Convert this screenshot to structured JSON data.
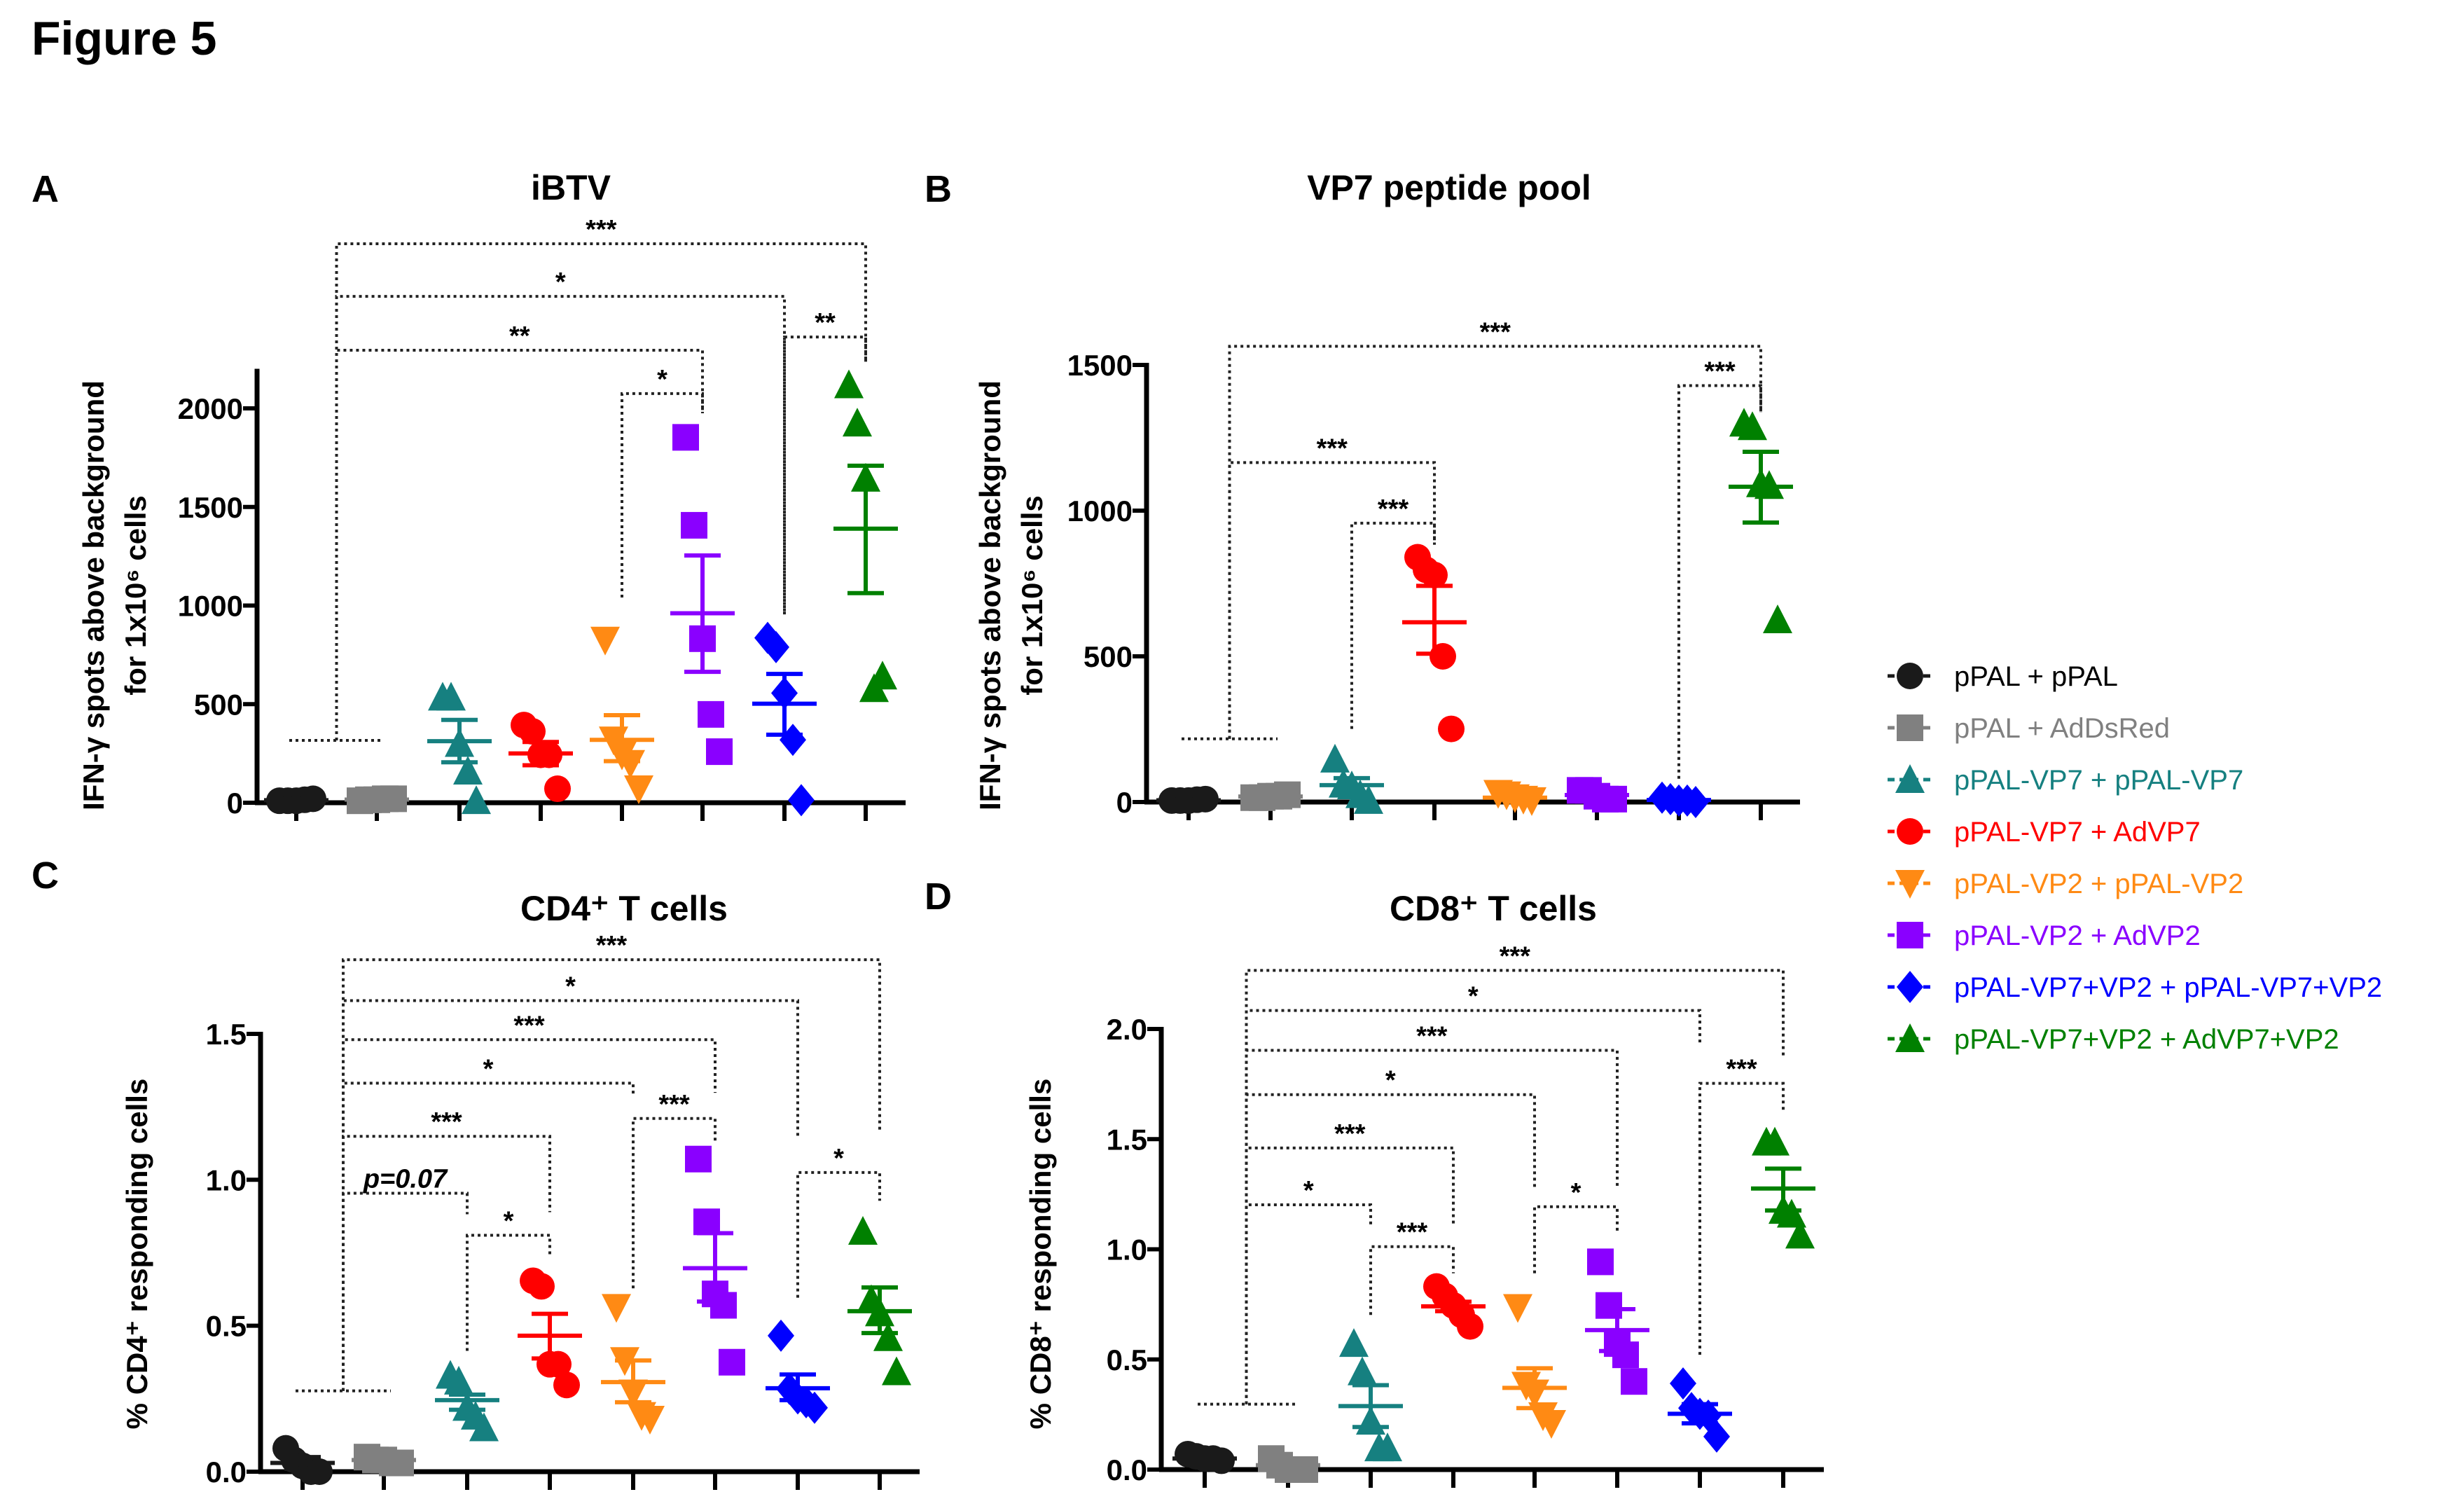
{
  "figure_title": "Figure 5",
  "legend": [
    {
      "label": "pPAL + pPAL",
      "color": "#1a1a1a",
      "marker": "circle"
    },
    {
      "label": "pPAL + AdDsRed",
      "color": "#808080",
      "marker": "square"
    },
    {
      "label": "pPAL-VP7 + pPAL-VP7",
      "color": "#168080",
      "marker": "triangle-up"
    },
    {
      "label": "pPAL-VP7 + AdVP7",
      "color": "#ff0000",
      "marker": "circle"
    },
    {
      "label": "pPAL-VP2 + pPAL-VP2",
      "color": "#ff8a14",
      "marker": "triangle-down"
    },
    {
      "label": "pPAL-VP2 + AdVP2",
      "color": "#8a00ff",
      "marker": "square"
    },
    {
      "label": "pPAL-VP7+VP2 + pPAL-VP7+VP2",
      "color": "#0000ff",
      "marker": "diamond"
    },
    {
      "label": "pPAL-VP7+VP2 + AdVP7+VP2",
      "color": "#008000",
      "marker": "triangle-up"
    }
  ],
  "chart_data": [
    {
      "panel": "A",
      "title": "iBTV",
      "type": "scatter",
      "ylabel": [
        "IFN-γ spots above background",
        "for 1x10⁶ cells"
      ],
      "ylim": [
        0,
        2190
      ],
      "yticks": [
        "0",
        "500",
        "1000",
        "1500",
        "2000"
      ],
      "ytick_values": [
        0,
        500,
        1000,
        1500,
        2000
      ],
      "groups": [
        {
          "points": [
            10,
            10,
            10,
            15,
            20
          ],
          "mean": 13,
          "sem": [
            8,
            18
          ]
        },
        {
          "points": [
            10,
            15,
            15,
            20,
            20
          ],
          "mean": 16,
          "sem": [
            12,
            20
          ]
        },
        {
          "points": [
            535,
            535,
            300,
            160,
            10
          ],
          "mean": 312,
          "sem": [
            205,
            420
          ]
        },
        {
          "points": [
            394,
            362,
            243,
            243,
            71
          ],
          "mean": 250,
          "sem": [
            190,
            308
          ]
        },
        {
          "points": [
            825,
            319,
            243,
            200,
            71
          ],
          "mean": 319,
          "sem": [
            211,
            444
          ]
        },
        {
          "points": [
            1853,
            1407,
            832,
            448,
            259
          ],
          "mean": 961,
          "sem": [
            664,
            1254
          ]
        },
        {
          "points": [
            836,
            789,
            556,
            319,
            13
          ],
          "mean": 502,
          "sem": [
            345,
            653
          ]
        },
        {
          "points": [
            2119,
            1925,
            1645,
            578,
            642
          ],
          "mean": 1390,
          "sem": [
            1063,
            1709
          ]
        }
      ],
      "control_line": {
        "from": 0,
        "to": 1,
        "y": 316
      },
      "brackets": [
        {
          "from": 0.5,
          "to": 7,
          "y": 2835,
          "y1": 316,
          "y2": 2234,
          "label": "***"
        },
        {
          "from": 0.5,
          "to": 6,
          "y": 2568,
          "y1": 316,
          "y2": 955,
          "label": "*"
        },
        {
          "from": 0.5,
          "to": 5,
          "y": 2295,
          "y1": 316,
          "y2": 1975,
          "label": "**"
        },
        {
          "from": 4,
          "to": 5,
          "y": 2075,
          "y1": 1041,
          "y2": 1975,
          "label": "*"
        },
        {
          "from": 6,
          "to": 7,
          "y": 2362,
          "y1": 955,
          "y2": 2234,
          "label": "**"
        }
      ]
    },
    {
      "panel": "B",
      "title": "VP7 peptide pool",
      "type": "scatter",
      "ylabel": [
        "IFN-γ spots above background",
        "for 1x10⁶ cells"
      ],
      "ylim": [
        0,
        1500
      ],
      "yticks": [
        "0",
        "500",
        "1000",
        "1500"
      ],
      "ytick_values": [
        0,
        500,
        1000,
        1500
      ],
      "groups": [
        {
          "points": [
            5,
            5,
            5,
            8,
            10
          ],
          "mean": 6,
          "sem": [
            4,
            8
          ]
        },
        {
          "points": [
            15,
            15,
            20,
            20,
            25
          ],
          "mean": 19,
          "sem": [
            16,
            22
          ]
        },
        {
          "points": [
            147,
            61,
            55,
            25,
            5
          ],
          "mean": 58,
          "sem": [
            30,
            82
          ]
        },
        {
          "points": [
            840,
            797,
            779,
            500,
            251
          ],
          "mean": 617,
          "sem": [
            509,
            742
          ]
        },
        {
          "points": [
            30,
            25,
            15,
            10,
            5
          ],
          "mean": 15,
          "sem": [
            8,
            22
          ]
        },
        {
          "points": [
            40,
            40,
            20,
            10,
            10
          ],
          "mean": 24,
          "sem": [
            15,
            33
          ]
        },
        {
          "points": [
            15,
            10,
            5,
            5,
            0
          ],
          "mean": 7,
          "sem": [
            3,
            11
          ]
        },
        {
          "points": [
            1300,
            1288,
            1092,
            1086,
            625
          ],
          "mean": 1082,
          "sem": [
            959,
            1202
          ]
        }
      ],
      "control_line": {
        "from": 0,
        "to": 1,
        "y": 217
      },
      "brackets": [
        {
          "from": 0.5,
          "to": 7,
          "y": 1564,
          "y1": 217,
          "y2": 1337,
          "label": "***"
        },
        {
          "from": 0.5,
          "to": 3,
          "y": 1165,
          "y1": 217,
          "y2": 883,
          "label": "***"
        },
        {
          "from": 2,
          "to": 3,
          "y": 957,
          "y1": 251,
          "y2": 883,
          "label": "***"
        },
        {
          "from": 6,
          "to": 7,
          "y": 1429,
          "y1": 80,
          "y2": 1337,
          "label": "***"
        }
      ]
    },
    {
      "panel": "C",
      "title": "CD4⁺ T cells",
      "type": "scatter",
      "ylabel": [
        "% CD4⁺ responding cells"
      ],
      "ylim": [
        0,
        1.5
      ],
      "yticks": [
        "0.0",
        "0.5",
        "1.0",
        "1.5"
      ],
      "ytick_values": [
        0,
        0.5,
        1.0,
        1.5
      ],
      "groups": [
        {
          "points": [
            0.08,
            0.04,
            0.02,
            0.0,
            0.0
          ],
          "mean": 0.03,
          "sem": [
            0.01,
            0.05
          ]
        },
        {
          "points": [
            0.05,
            0.04,
            0.04,
            0.03,
            0.03
          ],
          "mean": 0.04,
          "sem": [
            0.03,
            0.045
          ]
        },
        {
          "points": [
            0.33,
            0.31,
            0.22,
            0.19,
            0.15
          ],
          "mean": 0.245,
          "sem": [
            0.212,
            0.264
          ]
        },
        {
          "points": [
            0.654,
            0.635,
            0.368,
            0.368,
            0.297
          ],
          "mean": 0.466,
          "sem": [
            0.388,
            0.541
          ]
        },
        {
          "points": [
            0.563,
            0.381,
            0.27,
            0.193,
            0.18
          ],
          "mean": 0.307,
          "sem": [
            0.238,
            0.381
          ]
        },
        {
          "points": [
            1.071,
            0.856,
            0.609,
            0.57,
            0.375
          ],
          "mean": 0.697,
          "sem": [
            0.583,
            0.817
          ]
        },
        {
          "points": [
            0.466,
            0.284,
            0.251,
            0.238,
            0.219
          ],
          "mean": 0.286,
          "sem": [
            0.245,
            0.333
          ]
        },
        {
          "points": [
            0.823,
            0.589,
            0.544,
            0.459,
            0.342
          ],
          "mean": 0.55,
          "sem": [
            0.475,
            0.631
          ]
        }
      ],
      "control_line": {
        "from": 0,
        "to": 1,
        "y": 0.277
      },
      "brackets": [
        {
          "from": 0.5,
          "to": 7,
          "y": 1.754,
          "y1": 0.277,
          "y2": 1.162,
          "label": "***"
        },
        {
          "from": 0.5,
          "to": 6,
          "y": 1.614,
          "y1": 0.277,
          "y2": 1.149,
          "label": "*"
        },
        {
          "from": 0.5,
          "to": 5,
          "y": 1.48,
          "y1": 0.277,
          "y2": 1.298,
          "label": "***"
        },
        {
          "from": 0.5,
          "to": 4,
          "y": 1.331,
          "y1": 0.277,
          "y2": 1.285,
          "label": "*"
        },
        {
          "from": 0.5,
          "to": 3,
          "y": 1.149,
          "y1": 0.277,
          "y2": 0.889,
          "label": "***"
        },
        {
          "from": 0.5,
          "to": 2,
          "y": 0.954,
          "y1": 0.277,
          "y2": 0.882,
          "label": "p=0.07"
        },
        {
          "from": 2,
          "to": 3,
          "y": 0.81,
          "y1": 0.414,
          "y2": 0.739,
          "label": "*"
        },
        {
          "from": 4,
          "to": 5,
          "y": 1.21,
          "y1": 0.628,
          "y2": 1.129,
          "label": "***"
        },
        {
          "from": 6,
          "to": 7,
          "y": 1.025,
          "y1": 0.596,
          "y2": 0.928,
          "label": "*"
        }
      ]
    },
    {
      "panel": "D",
      "title": "CD8⁺ T cells",
      "type": "scatter",
      "ylabel": [
        "% CD8⁺ responding cells"
      ],
      "ylim": [
        0,
        2.0
      ],
      "yticks": [
        "0.0",
        "0.5",
        "1.0",
        "1.5",
        "2.0"
      ],
      "ytick_values": [
        0,
        0.5,
        1.0,
        1.5,
        2.0
      ],
      "groups": [
        {
          "points": [
            0.07,
            0.06,
            0.05,
            0.05,
            0.04
          ],
          "mean": 0.05,
          "sem": [
            0.045,
            0.06
          ]
        },
        {
          "points": [
            0.05,
            0.02,
            0.0,
            0.0,
            0.0
          ],
          "mean": 0.02,
          "sem": [
            0.01,
            0.03
          ]
        },
        {
          "points": [
            0.572,
            0.443,
            0.219,
            0.098,
            0.098
          ],
          "mean": 0.288,
          "sem": [
            0.193,
            0.383
          ]
        },
        {
          "points": [
            0.831,
            0.788,
            0.745,
            0.702,
            0.65
          ],
          "mean": 0.741,
          "sem": [
            0.719,
            0.762
          ]
        },
        {
          "points": [
            0.736,
            0.383,
            0.348,
            0.245,
            0.21
          ],
          "mean": 0.371,
          "sem": [
            0.279,
            0.46
          ]
        },
        {
          "points": [
            0.943,
            0.745,
            0.572,
            0.521,
            0.4
          ],
          "mean": 0.633,
          "sem": [
            0.538,
            0.728
          ]
        },
        {
          "points": [
            0.391,
            0.279,
            0.253,
            0.245,
            0.15
          ],
          "mean": 0.253,
          "sem": [
            0.21,
            0.297
          ]
        },
        {
          "points": [
            1.486,
            1.486,
            1.176,
            1.159,
            1.064
          ],
          "mean": 1.276,
          "sem": [
            1.176,
            1.366
          ]
        }
      ],
      "control_line": {
        "from": 0,
        "to": 1,
        "y": 0.297
      },
      "brackets": [
        {
          "from": 0.5,
          "to": 7,
          "y": 2.266,
          "y1": 0.297,
          "y2": 1.874,
          "label": "***"
        },
        {
          "from": 0.5,
          "to": 6,
          "y": 2.084,
          "y1": 0.297,
          "y2": 1.934,
          "label": "*"
        },
        {
          "from": 0.5,
          "to": 5,
          "y": 1.903,
          "y1": 0.297,
          "y2": 1.288,
          "label": "***"
        },
        {
          "from": 0.5,
          "to": 4,
          "y": 1.702,
          "y1": 0.297,
          "y2": 1.271,
          "label": "*"
        },
        {
          "from": 0.5,
          "to": 3,
          "y": 1.46,
          "y1": 0.297,
          "y2": 1.116,
          "label": "***"
        },
        {
          "from": 0.5,
          "to": 2,
          "y": 1.202,
          "y1": 0.297,
          "y2": 1.107,
          "label": "*"
        },
        {
          "from": 2,
          "to": 3,
          "y": 1.012,
          "y1": 0.702,
          "y2": 0.891,
          "label": "***"
        },
        {
          "from": 4,
          "to": 5,
          "y": 1.193,
          "y1": 0.891,
          "y2": 1.081,
          "label": "*"
        },
        {
          "from": 6,
          "to": 7,
          "y": 1.753,
          "y1": 0.521,
          "y2": 1.633,
          "label": "***"
        }
      ]
    }
  ]
}
